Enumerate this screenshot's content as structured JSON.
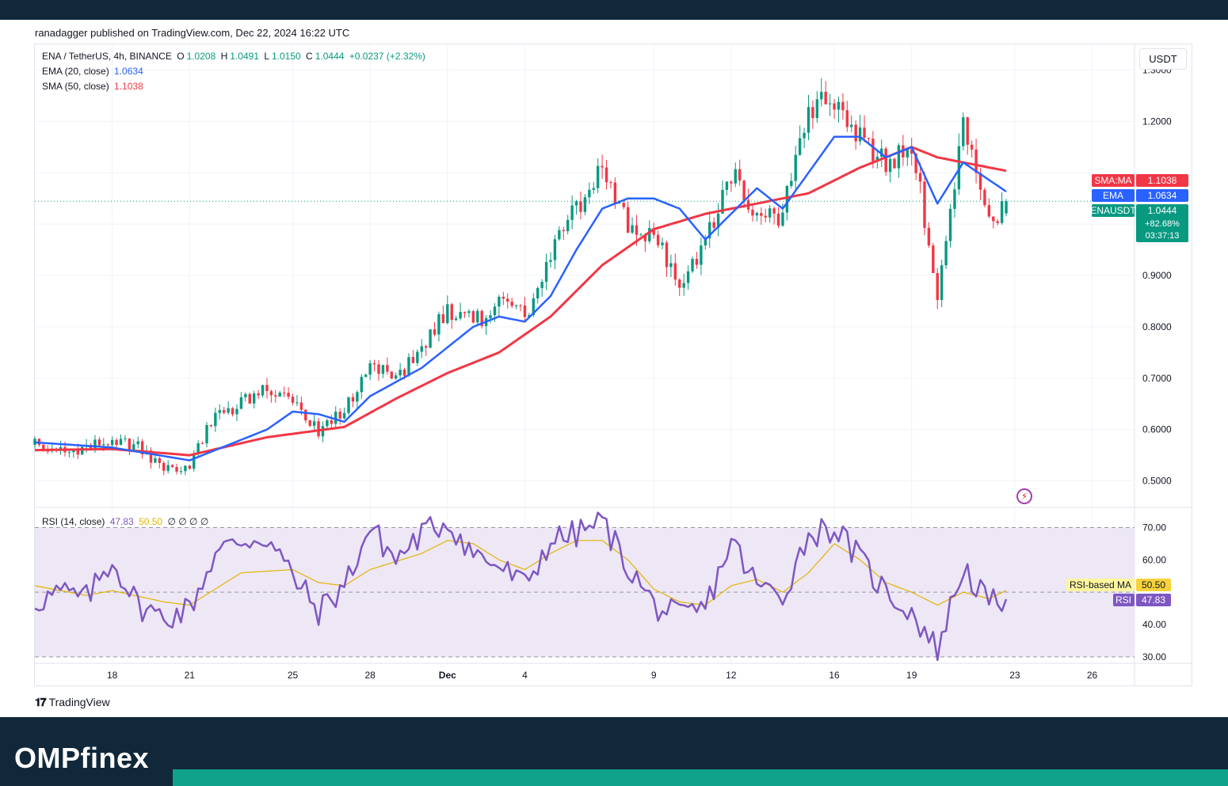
{
  "publisher": "ranadagger published on TradingView.com, Dec 22, 2024 16:22 UTC",
  "header": {
    "symbol": "ENA / TetherUS, 4h, BINANCE",
    "open_label": "O",
    "open": "1.0208",
    "high_label": "H",
    "high": "1.0491",
    "low_label": "L",
    "low": "1.0150",
    "close_label": "C",
    "close": "1.0444",
    "change": "+0.0237 (+2.32%)",
    "ema_label": "EMA (20, close)",
    "ema_value": "1.0634",
    "sma_label": "SMA (50, close)",
    "sma_value": "1.1038",
    "rsi_label": "RSI (14, close)",
    "rsi_value": "47.83",
    "rsi_ma_value": "50.50",
    "rsi_extra": "∅ ∅ ∅ ∅"
  },
  "currency_button": "USDT",
  "branding": {
    "tradingview": "TradingView",
    "footer_brand": "OMPfinex"
  },
  "colors": {
    "up": "#089981",
    "down": "#f23645",
    "ema": "#2962ff",
    "sma": "#f23645",
    "rsi": "#7e57c2",
    "rsi_ma": "#e3b500",
    "rsi_band": "#ede7f6",
    "footer": "#10283a",
    "accent": "#11a38a"
  },
  "chart_data": [
    {
      "type": "candlestick",
      "title": "ENA / TetherUS, 4h, BINANCE",
      "ylim": [
        0.45,
        1.35
      ],
      "y_ticks": [
        "1.3000",
        "1.2000",
        "0.9000",
        "0.8000",
        "0.7000",
        "0.6000",
        "0.5000"
      ],
      "x_ticks": [
        "18",
        "21",
        "25",
        "28",
        "Dec",
        "4",
        "9",
        "12",
        "16",
        "19",
        "23",
        "26"
      ],
      "grid": true,
      "price_anchors": [
        [
          "Nov 15",
          0.57
        ],
        [
          "Nov 16",
          0.555
        ],
        [
          "Nov 17",
          0.56
        ],
        [
          "Nov 18",
          0.585
        ],
        [
          "Nov 19",
          0.565
        ],
        [
          "Nov 20",
          0.52
        ],
        [
          "Nov 21",
          0.53
        ],
        [
          "Nov 22",
          0.63
        ],
        [
          "Nov 23",
          0.65
        ],
        [
          "Nov 24",
          0.68
        ],
        [
          "Nov 25",
          0.66
        ],
        [
          "Nov 26",
          0.6
        ],
        [
          "Nov 27",
          0.64
        ],
        [
          "Nov 28",
          0.72
        ],
        [
          "Nov 29",
          0.7
        ],
        [
          "Nov 30",
          0.76
        ],
        [
          "Dec 1",
          0.83
        ],
        [
          "Dec 2",
          0.81
        ],
        [
          "Dec 3",
          0.84
        ],
        [
          "Dec 4",
          0.82
        ],
        [
          "Dec 5",
          0.94
        ],
        [
          "Dec 6",
          1.03
        ],
        [
          "Dec 7",
          1.11
        ],
        [
          "Dec 8",
          1.0
        ],
        [
          "Dec 9",
          0.97
        ],
        [
          "Dec 10",
          0.89
        ],
        [
          "Dec 11",
          0.96
        ],
        [
          "Dec 12",
          1.1
        ],
        [
          "Dec 13",
          1.0
        ],
        [
          "Dec 14",
          1.02
        ],
        [
          "Dec 15",
          1.22
        ],
        [
          "Dec 16",
          1.25
        ],
        [
          "Dec 17",
          1.17
        ],
        [
          "Dec 18",
          1.12
        ],
        [
          "Dec 19",
          1.16
        ],
        [
          "Dec 20",
          0.86
        ],
        [
          "Dec 21",
          1.2
        ],
        [
          "Dec 22",
          1.0
        ],
        [
          "Dec 22 16:00",
          1.0444
        ]
      ],
      "series": [
        {
          "name": "EMA",
          "anchors": [
            [
              "Nov 15",
              0.575
            ],
            [
              "Nov 18",
              0.565
            ],
            [
              "Nov 21",
              0.54
            ],
            [
              "Nov 24",
              0.6
            ],
            [
              "Nov 25",
              0.635
            ],
            [
              "Nov 26",
              0.63
            ],
            [
              "Nov 27",
              0.615
            ],
            [
              "Nov 28",
              0.665
            ],
            [
              "Nov 30",
              0.72
            ],
            [
              "Dec 2",
              0.8
            ],
            [
              "Dec 3",
              0.82
            ],
            [
              "Dec 4",
              0.81
            ],
            [
              "Dec 5",
              0.86
            ],
            [
              "Dec 6",
              0.95
            ],
            [
              "Dec 7",
              1.03
            ],
            [
              "Dec 8",
              1.05
            ],
            [
              "Dec 9",
              1.05
            ],
            [
              "Dec 10",
              1.03
            ],
            [
              "Dec 11",
              0.97
            ],
            [
              "Dec 12",
              1.02
            ],
            [
              "Dec 13",
              1.07
            ],
            [
              "Dec 14",
              1.03
            ],
            [
              "Dec 15",
              1.1
            ],
            [
              "Dec 16",
              1.17
            ],
            [
              "Dec 17",
              1.17
            ],
            [
              "Dec 18",
              1.13
            ],
            [
              "Dec 19",
              1.15
            ],
            [
              "Dec 20",
              1.04
            ],
            [
              "Dec 21",
              1.12
            ],
            [
              "Dec 22 16:00",
              1.0634
            ]
          ]
        },
        {
          "name": "SMA",
          "anchors": [
            [
              "Nov 15",
              0.56
            ],
            [
              "Nov 18",
              0.562
            ],
            [
              "Nov 21",
              0.55
            ],
            [
              "Nov 24",
              0.585
            ],
            [
              "Nov 27",
              0.605
            ],
            [
              "Nov 29",
              0.66
            ],
            [
              "Dec 1",
              0.71
            ],
            [
              "Dec 3",
              0.75
            ],
            [
              "Dec 5",
              0.82
            ],
            [
              "Dec 7",
              0.92
            ],
            [
              "Dec 9",
              0.99
            ],
            [
              "Dec 11",
              1.02
            ],
            [
              "Dec 13",
              1.04
            ],
            [
              "Dec 15",
              1.06
            ],
            [
              "Dec 17",
              1.11
            ],
            [
              "Dec 19",
              1.15
            ],
            [
              "Dec 20",
              1.13
            ],
            [
              "Dec 21",
              1.12
            ],
            [
              "Dec 22 16:00",
              1.1038
            ]
          ]
        }
      ],
      "last_price": "1.0444",
      "price_labels": [
        {
          "name": "SMA:MA",
          "value": "1.1038"
        },
        {
          "name": "EMA",
          "value": "1.0634"
        },
        {
          "name": "ENAUSDT",
          "value": "1.0444",
          "extra": [
            "+82.68%",
            "03:37:13"
          ]
        }
      ]
    },
    {
      "type": "line",
      "title": "RSI (14, close)",
      "ylim": [
        28,
        76
      ],
      "y_ticks": [
        "70.00",
        "60.00",
        "40.00",
        "30.00"
      ],
      "band": [
        30,
        70
      ],
      "midline": 50,
      "x_ticks": [
        "18",
        "21",
        "25",
        "28",
        "Dec",
        "4",
        "9",
        "12",
        "16",
        "19",
        "23",
        "26"
      ],
      "series": [
        {
          "name": "RSI",
          "anchors": [
            [
              "Nov 15",
              47
            ],
            [
              "Nov 16",
              50
            ],
            [
              "Nov 17",
              48
            ],
            [
              "Nov 18",
              60
            ],
            [
              "Nov 19",
              46
            ],
            [
              "Nov 20",
              42
            ],
            [
              "Nov 21",
              45
            ],
            [
              "Nov 22",
              62
            ],
            [
              "Nov 23",
              66
            ],
            [
              "Nov 24",
              67
            ],
            [
              "Nov 25",
              55
            ],
            [
              "Nov 26",
              44
            ],
            [
              "Nov 27",
              52
            ],
            [
              "Nov 28",
              70
            ],
            [
              "Nov 29",
              60
            ],
            [
              "Nov 30",
              68
            ],
            [
              "Dec 1",
              72
            ],
            [
              "Dec 2",
              62
            ],
            [
              "Dec 3",
              58
            ],
            [
              "Dec 4",
              52
            ],
            [
              "Dec 5",
              66
            ],
            [
              "Dec 6",
              68
            ],
            [
              "Dec 7",
              72
            ],
            [
              "Dec 8",
              58
            ],
            [
              "Dec 9",
              46
            ],
            [
              "Dec 10",
              42
            ],
            [
              "Dec 11",
              45
            ],
            [
              "Dec 12",
              66
            ],
            [
              "Dec 13",
              52
            ],
            [
              "Dec 14",
              49
            ],
            [
              "Dec 15",
              68
            ],
            [
              "Dec 16",
              70
            ],
            [
              "Dec 17",
              60
            ],
            [
              "Dec 18",
              50
            ],
            [
              "Dec 19",
              44
            ],
            [
              "Dec 20",
              32
            ],
            [
              "Dec 21",
              58
            ],
            [
              "Dec 22",
              46
            ],
            [
              "Dec 22 16:00",
              47.83
            ]
          ]
        },
        {
          "name": "RSI-based MA",
          "anchors": [
            [
              "Nov 15",
              52
            ],
            [
              "Nov 17",
              49
            ],
            [
              "Nov 18",
              50.5
            ],
            [
              "Nov 20",
              47
            ],
            [
              "Nov 21",
              46
            ],
            [
              "Nov 23",
              56
            ],
            [
              "Nov 25",
              57
            ],
            [
              "Nov 26",
              53
            ],
            [
              "Nov 27",
              52
            ],
            [
              "Nov 28",
              57
            ],
            [
              "Nov 30",
              62
            ],
            [
              "Dec 1",
              66
            ],
            [
              "Dec 2",
              65
            ],
            [
              "Dec 3",
              60
            ],
            [
              "Dec 4",
              57
            ],
            [
              "Dec 5",
              62
            ],
            [
              "Dec 6",
              66
            ],
            [
              "Dec 7",
              66
            ],
            [
              "Dec 8",
              60
            ],
            [
              "Dec 9",
              51
            ],
            [
              "Dec 10",
              47
            ],
            [
              "Dec 11",
              46
            ],
            [
              "Dec 12",
              52
            ],
            [
              "Dec 13",
              54
            ],
            [
              "Dec 14",
              50
            ],
            [
              "Dec 15",
              56
            ],
            [
              "Dec 16",
              65
            ],
            [
              "Dec 17",
              60
            ],
            [
              "Dec 18",
              53
            ],
            [
              "Dec 19",
              50
            ],
            [
              "Dec 20",
              46
            ],
            [
              "Dec 21",
              50
            ],
            [
              "Dec 22",
              48
            ],
            [
              "Dec 22 16:00",
              50.5
            ]
          ]
        }
      ],
      "value_labels": [
        {
          "name": "RSI-based MA",
          "value": "50.50"
        },
        {
          "name": "RSI",
          "value": "47.83"
        }
      ]
    }
  ]
}
